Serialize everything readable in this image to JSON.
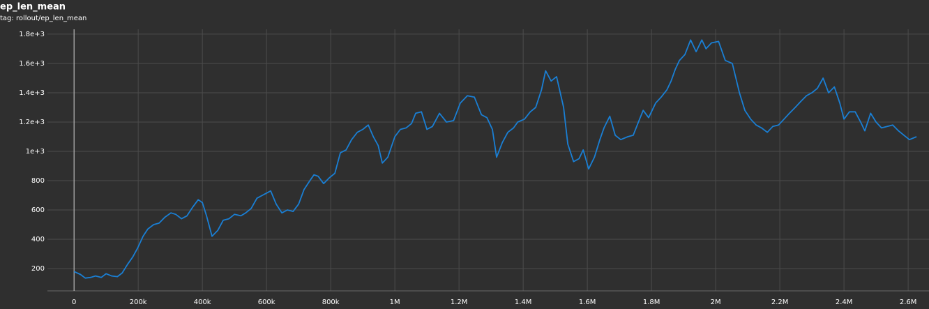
{
  "chart_data": {
    "type": "line",
    "title": "ep_len_mean",
    "subtitle": "tag: rollout/ep_len_mean",
    "color": "#1a7fd4",
    "grid": true,
    "xlim": [
      -83000,
      2665000
    ],
    "ylim": [
      48,
      1833
    ],
    "xticks": [
      0,
      {
        "value": 200000,
        "label": "200k"
      },
      {
        "value": 400000,
        "label": "400k"
      },
      {
        "value": 600000,
        "label": "600k"
      },
      {
        "value": 800000,
        "label": "800k"
      },
      {
        "value": 1000000,
        "label": "1M"
      },
      {
        "value": 1200000,
        "label": "1.2M"
      },
      {
        "value": 1400000,
        "label": "1.4M"
      },
      {
        "value": 1600000,
        "label": "1.6M"
      },
      {
        "value": 1800000,
        "label": "1.8M"
      },
      {
        "value": 2000000,
        "label": "2M"
      },
      {
        "value": 2200000,
        "label": "2.2M"
      },
      {
        "value": 2400000,
        "label": "2.4M"
      },
      {
        "value": 2600000,
        "label": "2.6M"
      }
    ],
    "yticks": [
      200,
      400,
      600,
      800,
      {
        "value": 1000,
        "label": "1e+3"
      },
      {
        "value": 1200,
        "label": "1.2e+3"
      },
      {
        "value": 1400,
        "label": "1.4e+3"
      },
      {
        "value": 1600,
        "label": "1.6e+3"
      },
      {
        "value": 1800,
        "label": "1.8e+3"
      }
    ],
    "x": [
      0,
      20000,
      35000,
      52000,
      67000,
      85000,
      100000,
      117000,
      135000,
      150000,
      167000,
      183000,
      198000,
      215000,
      230000,
      248000,
      265000,
      283000,
      302000,
      317000,
      335000,
      352000,
      370000,
      387000,
      400000,
      413000,
      430000,
      448000,
      465000,
      483000,
      500000,
      520000,
      535000,
      552000,
      570000,
      587000,
      613000,
      630000,
      648000,
      665000,
      683000,
      700000,
      717000,
      735000,
      748000,
      761000,
      778000,
      796000,
      813000,
      830000,
      848000,
      865000,
      883000,
      900000,
      917000,
      933000,
      948000,
      961000,
      978000,
      1000000,
      1017000,
      1035000,
      1052000,
      1065000,
      1083000,
      1100000,
      1117000,
      1139000,
      1161000,
      1183000,
      1204000,
      1226000,
      1248000,
      1270000,
      1287000,
      1304000,
      1317000,
      1335000,
      1352000,
      1370000,
      1383000,
      1404000,
      1422000,
      1439000,
      1457000,
      1470000,
      1487000,
      1504000,
      1526000,
      1539000,
      1557000,
      1574000,
      1587000,
      1604000,
      1622000,
      1639000,
      1652000,
      1670000,
      1687000,
      1704000,
      1726000,
      1743000,
      1761000,
      1774000,
      1791000,
      1813000,
      1830000,
      1848000,
      1861000,
      1874000,
      1887000,
      1904000,
      1922000,
      1939000,
      1957000,
      1970000,
      1987000,
      2009000,
      2030000,
      2052000,
      2074000,
      2091000,
      2109000,
      2126000,
      2143000,
      2161000,
      2178000,
      2196000,
      2213000,
      2230000,
      2248000,
      2265000,
      2283000,
      2300000,
      2317000,
      2335000,
      2352000,
      2370000,
      2387000,
      2400000,
      2417000,
      2435000,
      2452000,
      2465000,
      2483000,
      2500000,
      2517000,
      2535000,
      2552000,
      2570000,
      2587000,
      2604000,
      2626000
    ],
    "values": [
      180,
      160,
      135,
      140,
      150,
      140,
      165,
      150,
      145,
      170,
      230,
      280,
      340,
      420,
      470,
      500,
      510,
      550,
      580,
      570,
      540,
      560,
      620,
      670,
      650,
      560,
      420,
      460,
      530,
      540,
      570,
      560,
      580,
      610,
      680,
      700,
      730,
      640,
      580,
      600,
      590,
      640,
      740,
      800,
      840,
      830,
      780,
      820,
      850,
      990,
      1010,
      1080,
      1130,
      1150,
      1180,
      1100,
      1040,
      920,
      960,
      1100,
      1150,
      1160,
      1190,
      1260,
      1270,
      1150,
      1170,
      1260,
      1200,
      1210,
      1330,
      1380,
      1370,
      1250,
      1230,
      1150,
      960,
      1060,
      1130,
      1160,
      1200,
      1220,
      1270,
      1300,
      1420,
      1550,
      1480,
      1510,
      1300,
      1050,
      930,
      950,
      1010,
      880,
      960,
      1080,
      1160,
      1240,
      1110,
      1080,
      1100,
      1110,
      1210,
      1280,
      1230,
      1330,
      1370,
      1420,
      1480,
      1560,
      1620,
      1660,
      1760,
      1680,
      1760,
      1700,
      1740,
      1750,
      1620,
      1600,
      1400,
      1280,
      1220,
      1180,
      1160,
      1130,
      1170,
      1180,
      1220,
      1260,
      1300,
      1340,
      1380,
      1400,
      1430,
      1500,
      1400,
      1440,
      1330,
      1220,
      1270,
      1270,
      1200,
      1140,
      1260,
      1200,
      1160,
      1170,
      1180,
      1140,
      1110,
      1080,
      1100
    ]
  }
}
